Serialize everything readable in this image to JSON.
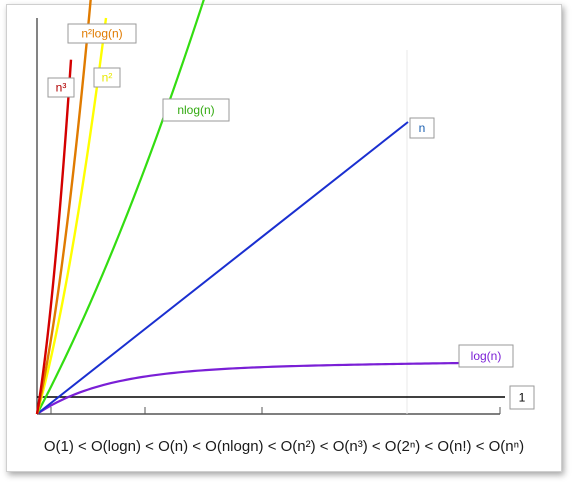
{
  "chart_data": {
    "type": "line",
    "title": "",
    "xlabel": "",
    "ylabel": "",
    "grid": false,
    "series": [
      {
        "name": "n³",
        "color": "#d40000",
        "growth": "n^3"
      },
      {
        "name": "n²log(n)",
        "color": "#e07b00",
        "growth": "n^2 log n"
      },
      {
        "name": "n²",
        "color": "#ffff00",
        "growth": "n^2"
      },
      {
        "name": "nlog(n)",
        "color": "#33dd11",
        "growth": "n log n"
      },
      {
        "name": "n",
        "color": "#1a2fd0",
        "growth": "n"
      },
      {
        "name": "log(n)",
        "color": "#7a1fd6",
        "growth": "log n"
      },
      {
        "name": "1",
        "color": "#000000",
        "growth": "constant"
      }
    ],
    "label_colors": {
      "n³": "#b00000",
      "n²log(n)": "#e07b00",
      "n²": "#e8e800",
      "nlog(n)": "#33aa11",
      "n": "#1a5fb0",
      "log(n)": "#7a1fd6",
      "1": "#000000"
    }
  },
  "formula": "O(1) < O(logn) < O(n) < O(nlogn) < O(n²) < O(n³) < O(2ⁿ) < O(n!) < O(nⁿ)"
}
